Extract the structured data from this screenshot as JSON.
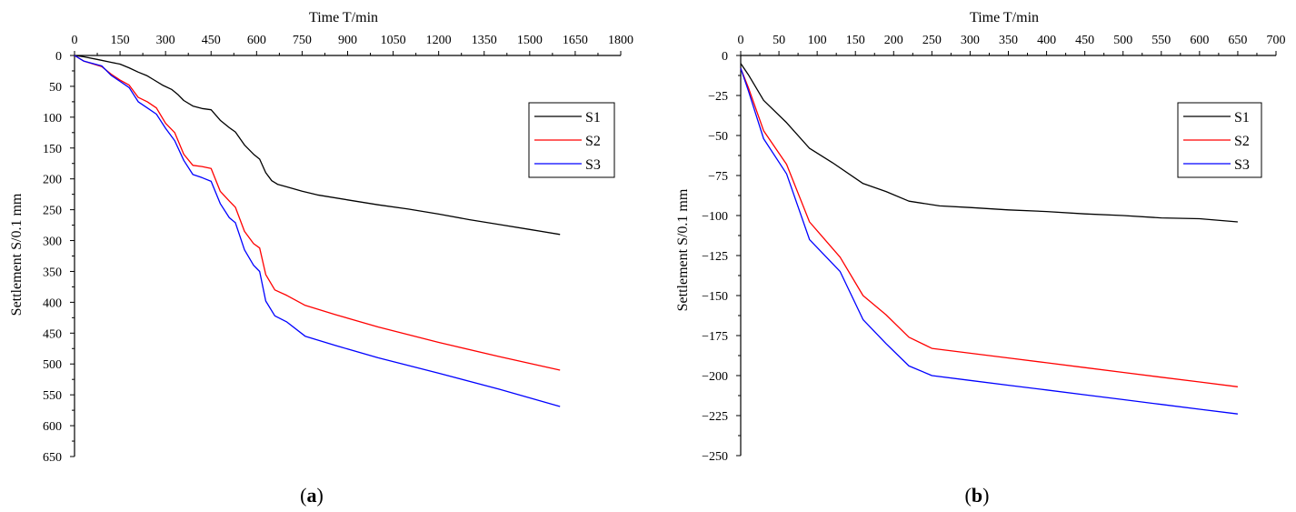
{
  "chart_data": [
    {
      "id": "a",
      "type": "line",
      "panel_label": "a",
      "xlabel": "Time  T/min",
      "ylabel": "Settlement S/0.1 mm",
      "xlim": [
        0,
        1800
      ],
      "ylim": [
        0,
        650
      ],
      "y_inverted": true,
      "x_ticks": [
        0,
        150,
        300,
        450,
        600,
        750,
        900,
        1050,
        1200,
        1350,
        1500,
        1650,
        1800
      ],
      "y_ticks": [
        0,
        50,
        100,
        150,
        200,
        250,
        300,
        350,
        400,
        450,
        500,
        550,
        600,
        650
      ],
      "legend_position": "top-right",
      "series": [
        {
          "name": "S1",
          "color": "#000000",
          "points": [
            [
              0,
              0
            ],
            [
              30,
              2
            ],
            [
              80,
              7
            ],
            [
              120,
              11
            ],
            [
              150,
              14
            ],
            [
              180,
              20
            ],
            [
              210,
              27
            ],
            [
              240,
              33
            ],
            [
              260,
              39
            ],
            [
              290,
              48
            ],
            [
              320,
              55
            ],
            [
              340,
              63
            ],
            [
              360,
              73
            ],
            [
              390,
              82
            ],
            [
              420,
              86
            ],
            [
              450,
              88
            ],
            [
              480,
              105
            ],
            [
              510,
              117
            ],
            [
              530,
              124
            ],
            [
              560,
              145
            ],
            [
              590,
              160
            ],
            [
              610,
              168
            ],
            [
              630,
              190
            ],
            [
              650,
              203
            ],
            [
              670,
              209
            ],
            [
              700,
              213
            ],
            [
              750,
              220
            ],
            [
              800,
              226
            ],
            [
              900,
              234
            ],
            [
              1000,
              242
            ],
            [
              1100,
              249
            ],
            [
              1200,
              257
            ],
            [
              1300,
              266
            ],
            [
              1400,
              274
            ],
            [
              1500,
              282
            ],
            [
              1600,
              290
            ]
          ]
        },
        {
          "name": "S2",
          "color": "#ff0000",
          "points": [
            [
              0,
              0
            ],
            [
              30,
              9
            ],
            [
              90,
              18
            ],
            [
              120,
              30
            ],
            [
              150,
              40
            ],
            [
              180,
              48
            ],
            [
              210,
              68
            ],
            [
              240,
              75
            ],
            [
              270,
              85
            ],
            [
              300,
              110
            ],
            [
              330,
              125
            ],
            [
              360,
              160
            ],
            [
              390,
              178
            ],
            [
              420,
              180
            ],
            [
              450,
              183
            ],
            [
              480,
              220
            ],
            [
              510,
              236
            ],
            [
              530,
              246
            ],
            [
              560,
              285
            ],
            [
              590,
              305
            ],
            [
              610,
              312
            ],
            [
              630,
              355
            ],
            [
              660,
              380
            ],
            [
              700,
              389
            ],
            [
              760,
              405
            ],
            [
              860,
              420
            ],
            [
              1000,
              440
            ],
            [
              1200,
              465
            ],
            [
              1400,
              488
            ],
            [
              1600,
              510
            ]
          ]
        },
        {
          "name": "S3",
          "color": "#0000ff",
          "points": [
            [
              0,
              0
            ],
            [
              30,
              9
            ],
            [
              90,
              17
            ],
            [
              120,
              32
            ],
            [
              150,
              42
            ],
            [
              180,
              52
            ],
            [
              210,
              75
            ],
            [
              240,
              85
            ],
            [
              270,
              95
            ],
            [
              300,
              118
            ],
            [
              330,
              138
            ],
            [
              360,
              170
            ],
            [
              390,
              193
            ],
            [
              420,
              198
            ],
            [
              450,
              204
            ],
            [
              480,
              240
            ],
            [
              510,
              263
            ],
            [
              530,
              271
            ],
            [
              560,
              315
            ],
            [
              590,
              340
            ],
            [
              610,
              350
            ],
            [
              630,
              398
            ],
            [
              660,
              422
            ],
            [
              700,
              432
            ],
            [
              760,
              455
            ],
            [
              860,
              470
            ],
            [
              1000,
              490
            ],
            [
              1200,
              515
            ],
            [
              1400,
              541
            ],
            [
              1600,
              569
            ]
          ]
        }
      ]
    },
    {
      "id": "b",
      "type": "line",
      "panel_label": "b",
      "xlabel": "Time  T/min",
      "ylabel": "Settlement S/0.1 mm",
      "xlim": [
        0,
        700
      ],
      "ylim": [
        0,
        -250
      ],
      "y_inverted": false,
      "x_ticks": [
        0,
        50,
        100,
        150,
        200,
        250,
        300,
        350,
        400,
        450,
        500,
        550,
        600,
        650,
        700
      ],
      "y_ticks": [
        0,
        -25,
        -50,
        -75,
        -100,
        -125,
        -150,
        -175,
        -200,
        -225,
        -250
      ],
      "legend_position": "top-right",
      "series": [
        {
          "name": "S1",
          "color": "#000000",
          "points": [
            [
              0,
              -5
            ],
            [
              10,
              -12
            ],
            [
              30,
              -28
            ],
            [
              60,
              -42
            ],
            [
              90,
              -58
            ],
            [
              120,
              -67
            ],
            [
              160,
              -80
            ],
            [
              190,
              -85
            ],
            [
              220,
              -91
            ],
            [
              260,
              -94
            ],
            [
              300,
              -95
            ],
            [
              350,
              -96.5
            ],
            [
              400,
              -97.5
            ],
            [
              450,
              -99
            ],
            [
              500,
              -100
            ],
            [
              550,
              -101.5
            ],
            [
              600,
              -102
            ],
            [
              650,
              -104
            ]
          ]
        },
        {
          "name": "S2",
          "color": "#ff0000",
          "points": [
            [
              0,
              -8
            ],
            [
              10,
              -20
            ],
            [
              30,
              -47
            ],
            [
              60,
              -68
            ],
            [
              90,
              -104
            ],
            [
              130,
              -126
            ],
            [
              160,
              -150
            ],
            [
              190,
              -162
            ],
            [
              220,
              -176
            ],
            [
              250,
              -183
            ],
            [
              300,
              -186
            ],
            [
              350,
              -189
            ],
            [
              400,
              -192
            ],
            [
              450,
              -195
            ],
            [
              500,
              -198
            ],
            [
              550,
              -201
            ],
            [
              600,
              -204
            ],
            [
              650,
              -207
            ]
          ]
        },
        {
          "name": "S3",
          "color": "#0000ff",
          "points": [
            [
              0,
              -8
            ],
            [
              10,
              -22
            ],
            [
              30,
              -52
            ],
            [
              60,
              -74
            ],
            [
              90,
              -115
            ],
            [
              130,
              -135
            ],
            [
              160,
              -165
            ],
            [
              190,
              -180
            ],
            [
              220,
              -194
            ],
            [
              250,
              -200
            ],
            [
              300,
              -203
            ],
            [
              350,
              -206
            ],
            [
              400,
              -209
            ],
            [
              450,
              -212
            ],
            [
              500,
              -215
            ],
            [
              550,
              -218
            ],
            [
              600,
              -221
            ],
            [
              650,
              -224
            ]
          ]
        }
      ]
    }
  ]
}
